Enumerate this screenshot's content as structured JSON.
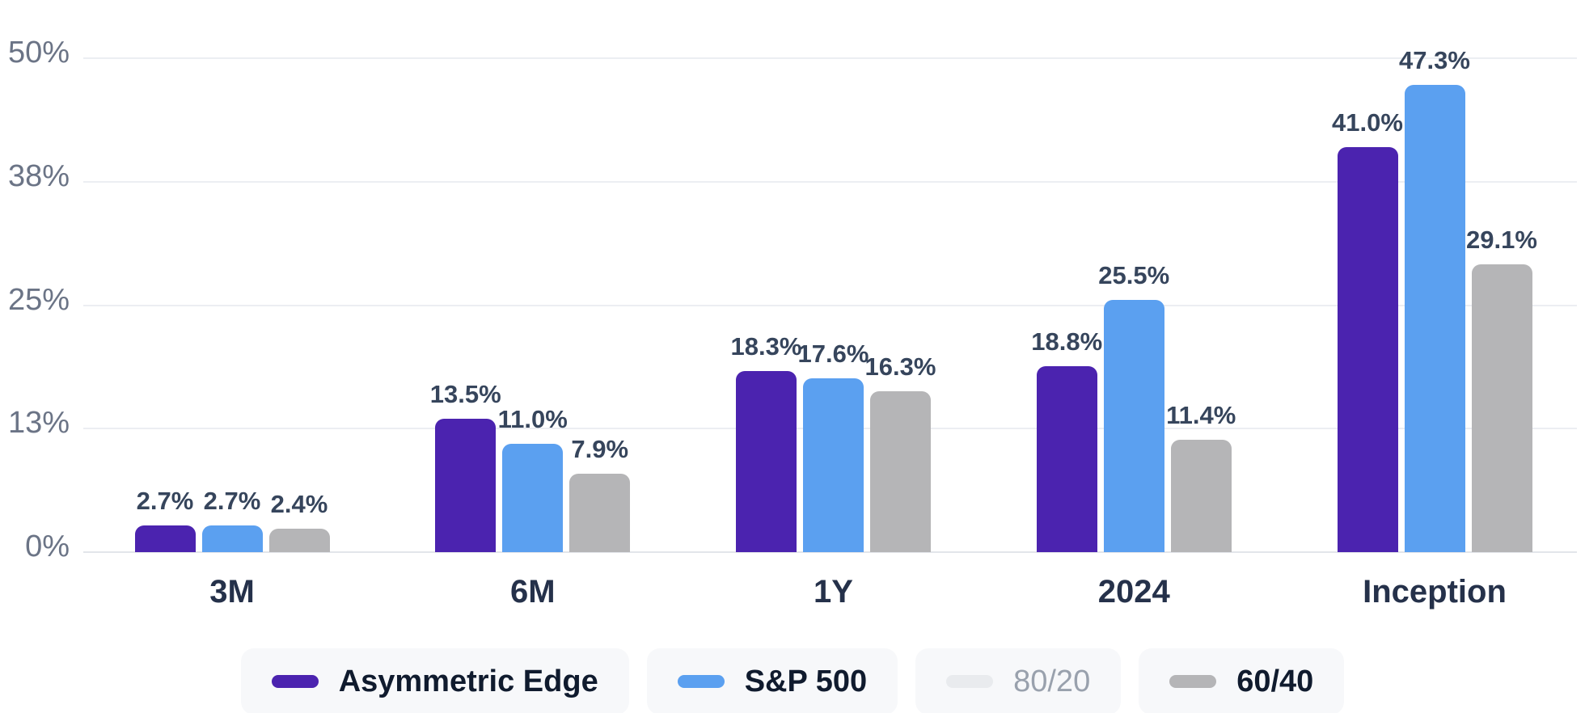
{
  "chart_data": {
    "type": "bar",
    "categories": [
      "3M",
      "6M",
      "1Y",
      "2024",
      "Inception"
    ],
    "series": [
      {
        "name": "Asymmetric Edge",
        "color": "#4b23af",
        "visible": true,
        "values": [
          2.7,
          13.5,
          18.3,
          18.8,
          41.0
        ]
      },
      {
        "name": "S&P 500",
        "color": "#5ba0f0",
        "visible": true,
        "values": [
          2.7,
          11.0,
          17.6,
          25.5,
          47.3
        ]
      },
      {
        "name": "80/20",
        "color": "#e9ebee",
        "visible": false,
        "values": []
      },
      {
        "name": "60/40",
        "color": "#b5b5b7",
        "visible": true,
        "values": [
          2.4,
          7.9,
          16.3,
          11.4,
          29.1
        ]
      }
    ],
    "y_axis": {
      "range": [
        0,
        50
      ],
      "ticks": [
        {
          "v": 0,
          "label": "0%"
        },
        {
          "v": 12.5,
          "label": "13%"
        },
        {
          "v": 25,
          "label": "25%"
        },
        {
          "v": 37.5,
          "label": "38%"
        },
        {
          "v": 50,
          "label": "50%"
        }
      ],
      "grid": true
    },
    "value_label_format": "one-decimal-percent",
    "legend_position": "bottom"
  },
  "colors": {
    "background": "#ffffff",
    "gridline": "#eceef2",
    "baseline": "#e2e5ea",
    "y_tick_text": "#6b7486",
    "value_label_text": "#36455c",
    "x_label_text": "#25314a",
    "legend_text": "#101b2e",
    "legend_text_disabled": "#99a1ad",
    "legend_item_bg": "#f7f8fa"
  }
}
